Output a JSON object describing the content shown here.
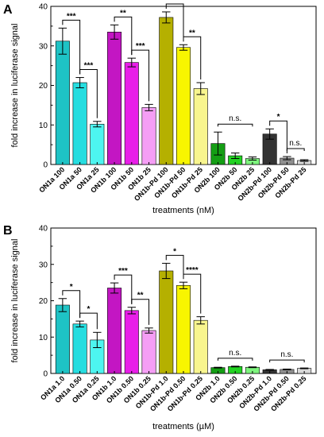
{
  "chart_data": [
    {
      "type": "bar",
      "panel": "A",
      "xlabel": "treatments (nM)",
      "ylabel": "fold increase in luciferase signal",
      "ylim": [
        0,
        40
      ],
      "yticks": [
        0,
        10,
        20,
        30,
        40
      ],
      "categories": [
        "ON1a 100",
        "ON1a 50",
        "ON1a 25",
        "ON1b 100",
        "ON1b 50",
        "ON1b 25",
        "ON1b-Pd 100",
        "ON1b-Pd 50",
        "ON1b-Pd 25",
        "ON2b 100",
        "ON2b 50",
        "ON2b 25",
        "ON2b-Pd 100",
        "ON2b-Pd 50",
        "ON2b-Pd 25"
      ],
      "values": [
        31.2,
        20.7,
        10.2,
        33.5,
        25.8,
        14.4,
        37.2,
        29.6,
        19.2,
        5.3,
        2.2,
        1.5,
        7.7,
        1.6,
        1.0
      ],
      "errors": [
        3.3,
        1.3,
        0.7,
        1.8,
        1.1,
        0.8,
        1.4,
        0.7,
        1.5,
        2.9,
        0.7,
        0.4,
        1.3,
        0.4,
        0.2
      ],
      "colors": [
        "#1ec3c5",
        "#26dde0",
        "#4df5f0",
        "#c316c3",
        "#e81ee8",
        "#f59ef5",
        "#b5b000",
        "#f8f500",
        "#f8f58e",
        "#149e14",
        "#22d322",
        "#7ef57e",
        "#333333",
        "#8f8f8f",
        "#d9d9d9"
      ],
      "significance": [
        {
          "from": 0,
          "to": 1,
          "label": "***"
        },
        {
          "from": 1,
          "to": 2,
          "label": "***"
        },
        {
          "from": 3,
          "to": 4,
          "label": "**"
        },
        {
          "from": 4,
          "to": 5,
          "label": "***"
        },
        {
          "from": 6,
          "to": 7,
          "label": "*"
        },
        {
          "from": 7,
          "to": 8,
          "label": "**"
        },
        {
          "from": 9,
          "to": 11,
          "label": "n.s."
        },
        {
          "from": 12,
          "to": 13,
          "label": "*"
        },
        {
          "from": 13,
          "to": 14,
          "label": "n.s."
        }
      ]
    },
    {
      "type": "bar",
      "panel": "B",
      "xlabel": "treatments (µM)",
      "ylabel": "fold increase in luciferase signal",
      "ylim": [
        0,
        40
      ],
      "yticks": [
        0,
        10,
        20,
        30,
        40
      ],
      "categories": [
        "ON1a 1.0",
        "ON1a 0.50",
        "ON1a 0.25",
        "ON1b 1.0",
        "ON1b 0.50",
        "ON1b 0.25",
        "ON1b-Pd 1.0",
        "ON1b-Pd 0.50",
        "ON1b-Pd 0.25",
        "ON2b 1.0",
        "ON2b 0.50",
        "ON2b 0.25",
        "ON2b-Pd 1.0",
        "ON2b-Pd 0.50",
        "ON2b-Pd 0.25"
      ],
      "values": [
        18.8,
        13.6,
        9.2,
        23.5,
        17.3,
        11.8,
        28.2,
        24.2,
        14.6,
        1.6,
        1.9,
        1.7,
        1.0,
        1.1,
        1.4
      ],
      "errors": [
        1.8,
        0.8,
        2.1,
        1.4,
        0.9,
        0.7,
        2.1,
        0.9,
        1.0,
        0.1,
        0.1,
        0.1,
        0.1,
        0.1,
        0.1
      ],
      "colors": [
        "#1ec3c5",
        "#26dde0",
        "#4df5f0",
        "#c316c3",
        "#e81ee8",
        "#f59ef5",
        "#b5b000",
        "#f8f500",
        "#f8f58e",
        "#149e14",
        "#22d322",
        "#7ef57e",
        "#333333",
        "#8f8f8f",
        "#d9d9d9"
      ],
      "significance": [
        {
          "from": 0,
          "to": 1,
          "label": "*"
        },
        {
          "from": 1,
          "to": 2,
          "label": "*"
        },
        {
          "from": 3,
          "to": 4,
          "label": "***"
        },
        {
          "from": 4,
          "to": 5,
          "label": "**"
        },
        {
          "from": 6,
          "to": 7,
          "label": "*"
        },
        {
          "from": 7,
          "to": 8,
          "label": "****"
        },
        {
          "from": 9,
          "to": 11,
          "label": "n.s."
        },
        {
          "from": 12,
          "to": 14,
          "label": "n.s."
        }
      ]
    }
  ]
}
